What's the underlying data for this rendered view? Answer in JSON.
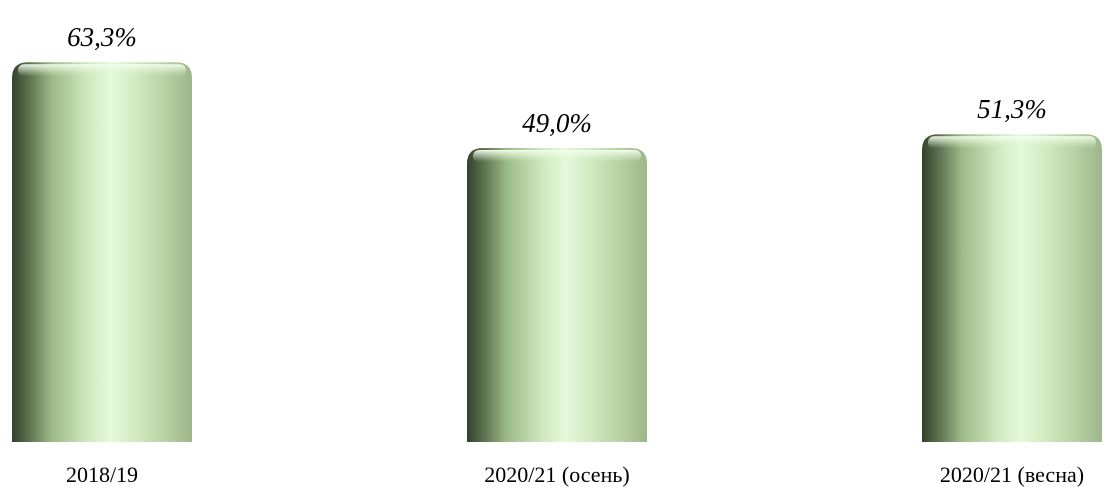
{
  "chart_data": {
    "type": "bar",
    "categories": [
      "2018/19",
      "2020/21 (осень)",
      "2020/21 (весна)"
    ],
    "values": [
      63.3,
      49.0,
      51.3
    ],
    "value_labels": [
      "63,3%",
      "49,0%",
      "51,3%"
    ],
    "title": "",
    "xlabel": "",
    "ylabel": "",
    "ylim": [
      0,
      70
    ],
    "grid": false,
    "legend": "none",
    "bar_style": "3d-cylinder",
    "colors": {
      "bar_dark": "#3a4a32",
      "bar_mid": "#a8c894",
      "bar_light": "#e4fadb",
      "bar_highlight": "#f4fff0"
    }
  }
}
